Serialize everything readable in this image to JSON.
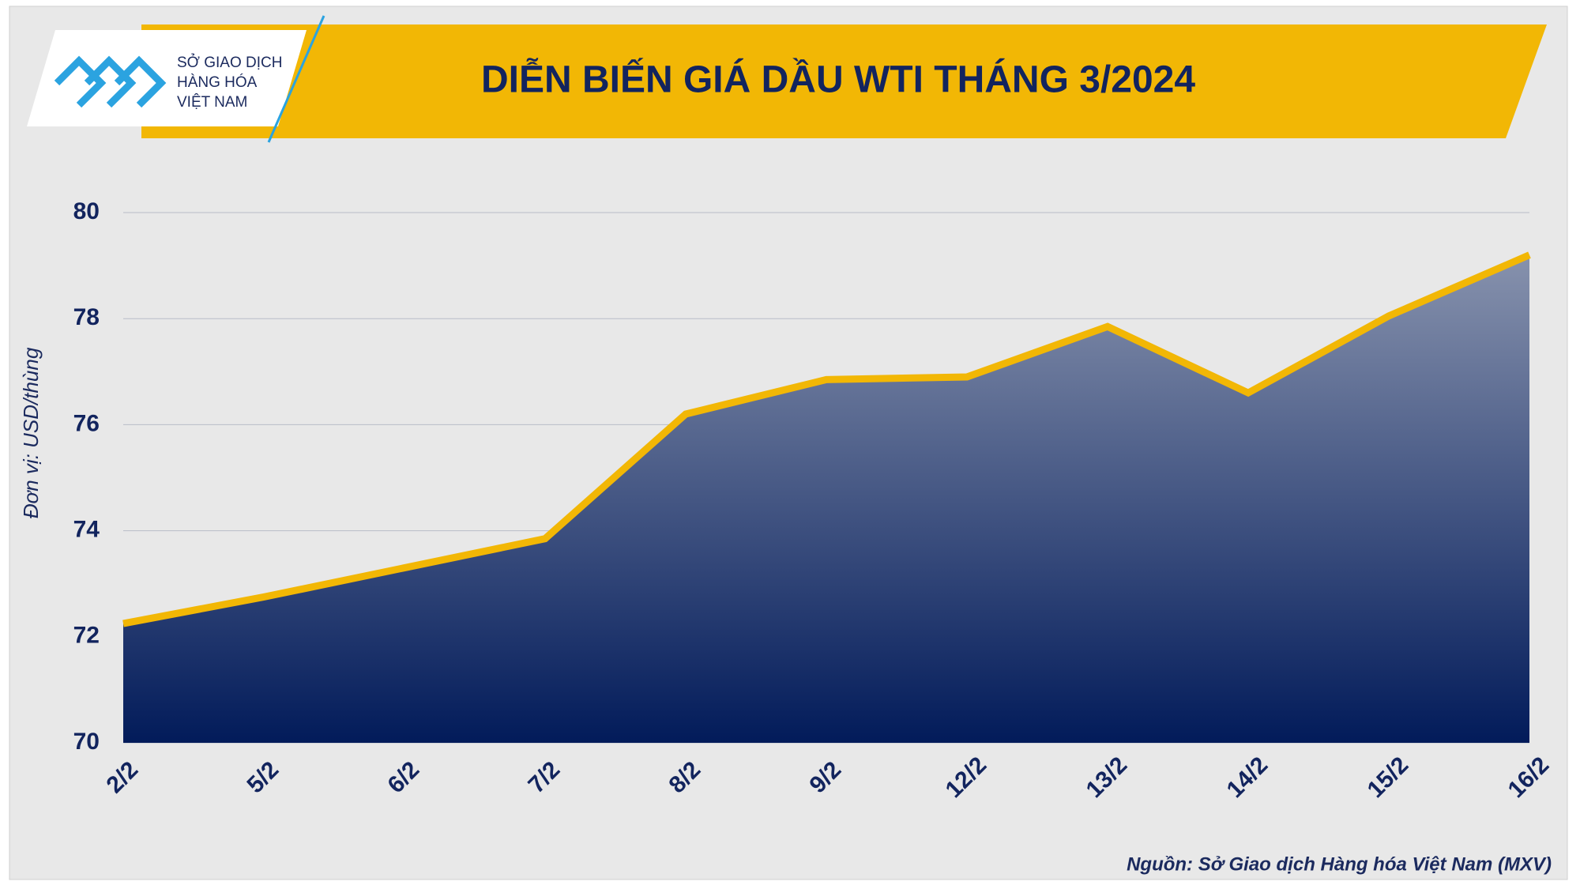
{
  "logo": [
    "SỞ GIAO DỊCH",
    "HÀNG HÓA",
    "VIỆT NAM"
  ],
  "chart_data": {
    "type": "area",
    "title": "DIỄN BIẾN GIÁ DẦU WTI THÁNG 3/2024",
    "y_label": "Đơn vị: USD/thùng",
    "source": "Nguồn: Sở Giao dịch Hàng hóa Việt Nam (MXV)",
    "categories": [
      "2/2",
      "5/2",
      "6/2",
      "7/2",
      "8/2",
      "9/2",
      "12/2",
      "13/2",
      "14/2",
      "15/2",
      "16/2"
    ],
    "values": [
      72.25,
      72.75,
      73.3,
      73.85,
      76.2,
      76.85,
      76.9,
      77.85,
      76.6,
      78.05,
      79.2
    ],
    "color": "#f2b705",
    "ylim": [
      70,
      80
    ],
    "yticks": [
      70,
      72,
      74,
      76,
      78,
      80
    ],
    "grid": true
  }
}
